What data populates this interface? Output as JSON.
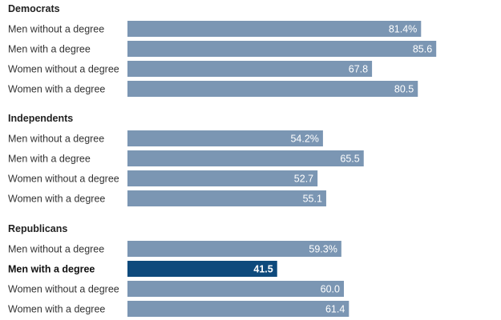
{
  "chart_data": {
    "type": "bar",
    "orientation": "horizontal",
    "xlim": [
      0,
      100
    ],
    "colors": {
      "bar": "#7b96b3",
      "highlight": "#0e4a7c"
    },
    "groups": [
      {
        "name": "Democrats",
        "rows": [
          {
            "label": "Men without a degree",
            "value": 81.4,
            "value_label": "81.4%",
            "highlight": false
          },
          {
            "label": "Men with a degree",
            "value": 85.6,
            "value_label": "85.6",
            "highlight": false
          },
          {
            "label": "Women without a degree",
            "value": 67.8,
            "value_label": "67.8",
            "highlight": false
          },
          {
            "label": "Women with a degree",
            "value": 80.5,
            "value_label": "80.5",
            "highlight": false
          }
        ]
      },
      {
        "name": "Independents",
        "rows": [
          {
            "label": "Men without a degree",
            "value": 54.2,
            "value_label": "54.2%",
            "highlight": false
          },
          {
            "label": "Men with a degree",
            "value": 65.5,
            "value_label": "65.5",
            "highlight": false
          },
          {
            "label": "Women without a degree",
            "value": 52.7,
            "value_label": "52.7",
            "highlight": false
          },
          {
            "label": "Women with a degree",
            "value": 55.1,
            "value_label": "55.1",
            "highlight": false
          }
        ]
      },
      {
        "name": "Republicans",
        "rows": [
          {
            "label": "Men without a degree",
            "value": 59.3,
            "value_label": "59.3%",
            "highlight": false
          },
          {
            "label": "Men with a degree",
            "value": 41.5,
            "value_label": "41.5",
            "highlight": true
          },
          {
            "label": "Women without a degree",
            "value": 60.0,
            "value_label": "60.0",
            "highlight": false
          },
          {
            "label": "Women with a degree",
            "value": 61.4,
            "value_label": "61.4",
            "highlight": false
          }
        ]
      }
    ]
  }
}
